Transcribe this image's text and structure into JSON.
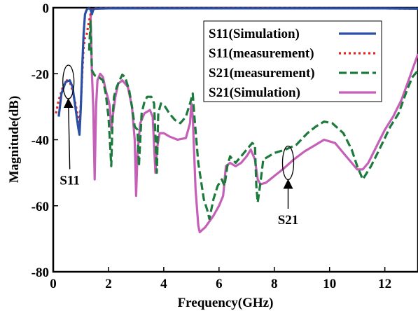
{
  "chart_data": {
    "type": "line",
    "xlabel": "Frequency(GHz)",
    "ylabel": "Magnitude(dB)",
    "xlim": [
      0,
      13.2
    ],
    "ylim": [
      -80,
      0
    ],
    "xticks": [
      {
        "value": 0,
        "label": "0"
      },
      {
        "value": 2,
        "label": "2"
      },
      {
        "value": 4,
        "label": "4"
      },
      {
        "value": 6,
        "label": "6"
      },
      {
        "value": 8,
        "label": "8"
      },
      {
        "value": 10,
        "label": "10"
      },
      {
        "value": 12,
        "label": "12"
      }
    ],
    "yticks": [
      {
        "value": 0,
        "label": "0"
      },
      {
        "value": -20,
        "label": "-20"
      },
      {
        "value": -40,
        "label": "-40"
      },
      {
        "value": -60,
        "label": "-60"
      },
      {
        "value": -80,
        "label": "-80"
      }
    ],
    "grid": false,
    "legend_position": "top-right",
    "series": [
      {
        "name": "S11(Simulation)",
        "color": "#2b4fa3",
        "dash": "solid",
        "points": [
          [
            0.2,
            -33
          ],
          [
            0.3,
            -26
          ],
          [
            0.45,
            -22.5
          ],
          [
            0.6,
            -22
          ],
          [
            0.7,
            -24
          ],
          [
            0.8,
            -30
          ],
          [
            0.9,
            -36
          ],
          [
            0.95,
            -38.5
          ],
          [
            1.0,
            -30
          ],
          [
            1.05,
            -18
          ],
          [
            1.1,
            -8
          ],
          [
            1.15,
            -2
          ],
          [
            1.2,
            -0.8
          ],
          [
            1.25,
            -0.3
          ],
          [
            1.3,
            -0.2
          ],
          [
            1.35,
            -0.5
          ],
          [
            1.4,
            -2
          ],
          [
            1.45,
            -0.6
          ],
          [
            1.5,
            -0.3
          ],
          [
            2,
            -0.2
          ],
          [
            4,
            -0.2
          ],
          [
            6,
            -0.2
          ],
          [
            8,
            -0.2
          ],
          [
            10,
            -0.2
          ],
          [
            12,
            -0.2
          ],
          [
            13.2,
            -0.3
          ]
        ]
      },
      {
        "name": "S11(measurement)",
        "color": "#e8231f",
        "dash": "dotted",
        "points": [
          [
            0.1,
            -32
          ],
          [
            0.2,
            -28
          ],
          [
            0.35,
            -24
          ],
          [
            0.5,
            -22
          ],
          [
            0.6,
            -22.5
          ],
          [
            0.7,
            -25
          ],
          [
            0.8,
            -29
          ],
          [
            0.9,
            -33
          ],
          [
            0.95,
            -36
          ],
          [
            1.0,
            -29
          ],
          [
            1.05,
            -20
          ],
          [
            1.1,
            -12
          ],
          [
            1.15,
            -9
          ],
          [
            1.2,
            -8.5
          ],
          [
            1.3,
            -4
          ],
          [
            1.35,
            -2
          ],
          [
            1.4,
            -0.5
          ],
          [
            1.5,
            -0.2
          ],
          [
            2,
            -0.1
          ],
          [
            4,
            -0.1
          ],
          [
            6,
            -0.1
          ],
          [
            8,
            -0.1
          ],
          [
            10,
            -0.2
          ],
          [
            12,
            -0.2
          ],
          [
            13.2,
            -0.3
          ]
        ]
      },
      {
        "name": "S21(measurement)",
        "color": "#1c7a3c",
        "dash": "dashed",
        "points": [
          [
            1.3,
            -13
          ],
          [
            1.35,
            -4
          ],
          [
            1.4,
            -19
          ],
          [
            1.5,
            -20.5
          ],
          [
            1.65,
            -21
          ],
          [
            1.8,
            -22
          ],
          [
            1.9,
            -26
          ],
          [
            2.0,
            -33
          ],
          [
            2.05,
            -40
          ],
          [
            2.1,
            -48
          ],
          [
            2.15,
            -33
          ],
          [
            2.2,
            -27
          ],
          [
            2.3,
            -24
          ],
          [
            2.4,
            -22
          ],
          [
            2.5,
            -20.3
          ],
          [
            2.6,
            -21
          ],
          [
            2.75,
            -25
          ],
          [
            2.85,
            -30
          ],
          [
            2.95,
            -36
          ],
          [
            3.05,
            -37
          ],
          [
            3.1,
            -48
          ],
          [
            3.2,
            -32
          ],
          [
            3.3,
            -28.5
          ],
          [
            3.4,
            -27
          ],
          [
            3.55,
            -27
          ],
          [
            3.65,
            -29
          ],
          [
            3.75,
            -50
          ],
          [
            3.8,
            -32
          ],
          [
            3.9,
            -29
          ],
          [
            4.05,
            -30
          ],
          [
            4.2,
            -32
          ],
          [
            4.4,
            -34
          ],
          [
            4.6,
            -35
          ],
          [
            4.8,
            -33
          ],
          [
            4.95,
            -29
          ],
          [
            5.05,
            -26
          ],
          [
            5.1,
            -32
          ],
          [
            5.25,
            -47
          ],
          [
            5.45,
            -58
          ],
          [
            5.6,
            -62
          ],
          [
            5.65,
            -64
          ],
          [
            5.8,
            -58
          ],
          [
            5.95,
            -54
          ],
          [
            6.1,
            -52
          ],
          [
            6.2,
            -54
          ],
          [
            6.3,
            -48
          ],
          [
            6.4,
            -45
          ],
          [
            6.6,
            -47
          ],
          [
            6.8,
            -45
          ],
          [
            7.0,
            -43
          ],
          [
            7.2,
            -41
          ],
          [
            7.3,
            -41.5
          ],
          [
            7.35,
            -54
          ],
          [
            7.4,
            -59
          ],
          [
            7.5,
            -53
          ],
          [
            7.6,
            -46
          ],
          [
            7.8,
            -45
          ],
          [
            8.0,
            -44
          ],
          [
            8.4,
            -43
          ],
          [
            8.8,
            -41.5
          ],
          [
            9.2,
            -38
          ],
          [
            9.5,
            -36
          ],
          [
            9.8,
            -34.5
          ],
          [
            10.1,
            -35
          ],
          [
            10.5,
            -38
          ],
          [
            10.8,
            -43
          ],
          [
            11.0,
            -48
          ],
          [
            11.2,
            -52
          ],
          [
            11.5,
            -48
          ],
          [
            11.8,
            -43
          ],
          [
            12.2,
            -36
          ],
          [
            12.5,
            -32
          ],
          [
            12.8,
            -25
          ],
          [
            13.0,
            -21
          ],
          [
            13.2,
            -19
          ]
        ]
      },
      {
        "name": "S21(Simulation)",
        "color": "#c55fb7",
        "dash": "solid",
        "points": [
          [
            1.35,
            -2
          ],
          [
            1.4,
            -20
          ],
          [
            1.45,
            -30
          ],
          [
            1.5,
            -52
          ],
          [
            1.55,
            -30
          ],
          [
            1.6,
            -22
          ],
          [
            1.7,
            -20
          ],
          [
            1.8,
            -21
          ],
          [
            1.9,
            -25
          ],
          [
            2.0,
            -28
          ],
          [
            2.05,
            -30
          ],
          [
            2.1,
            -37
          ],
          [
            2.15,
            -33
          ],
          [
            2.25,
            -27
          ],
          [
            2.35,
            -23
          ],
          [
            2.5,
            -22
          ],
          [
            2.7,
            -24
          ],
          [
            2.85,
            -30
          ],
          [
            2.95,
            -40
          ],
          [
            3.0,
            -57
          ],
          [
            3.05,
            -44
          ],
          [
            3.15,
            -35
          ],
          [
            3.3,
            -32
          ],
          [
            3.5,
            -31
          ],
          [
            3.6,
            -33
          ],
          [
            3.7,
            -50
          ],
          [
            3.75,
            -43
          ],
          [
            3.85,
            -38
          ],
          [
            4.0,
            -38
          ],
          [
            4.2,
            -39
          ],
          [
            4.5,
            -40
          ],
          [
            4.8,
            -39.5
          ],
          [
            4.95,
            -35
          ],
          [
            5.0,
            -29
          ],
          [
            5.05,
            -33
          ],
          [
            5.15,
            -55
          ],
          [
            5.25,
            -66
          ],
          [
            5.3,
            -68
          ],
          [
            5.5,
            -66.5
          ],
          [
            5.8,
            -63
          ],
          [
            6.0,
            -60
          ],
          [
            6.15,
            -57
          ],
          [
            6.25,
            -48
          ],
          [
            6.4,
            -47
          ],
          [
            6.6,
            -48
          ],
          [
            6.8,
            -47
          ],
          [
            7.0,
            -45
          ],
          [
            7.15,
            -43
          ],
          [
            7.3,
            -46
          ],
          [
            7.4,
            -52
          ],
          [
            7.5,
            -53.5
          ],
          [
            7.7,
            -53
          ],
          [
            8.0,
            -51
          ],
          [
            8.3,
            -49
          ],
          [
            8.7,
            -46
          ],
          [
            9.1,
            -43.5
          ],
          [
            9.5,
            -41.5
          ],
          [
            9.8,
            -40
          ],
          [
            10.2,
            -41
          ],
          [
            10.5,
            -44
          ],
          [
            10.8,
            -47
          ],
          [
            11.0,
            -49
          ],
          [
            11.2,
            -49
          ],
          [
            11.4,
            -47
          ],
          [
            11.7,
            -42
          ],
          [
            12.0,
            -37
          ],
          [
            12.3,
            -33
          ],
          [
            12.6,
            -28
          ],
          [
            12.9,
            -21
          ],
          [
            13.2,
            -14
          ]
        ]
      }
    ],
    "annotations": [
      {
        "text": "S11",
        "target": [
          0.55,
          -22.5
        ],
        "label_at": [
          0.6,
          -54
        ]
      },
      {
        "text": "S21",
        "target": [
          8.5,
          -47
        ],
        "label_at": [
          8.5,
          -66
        ]
      }
    ]
  }
}
